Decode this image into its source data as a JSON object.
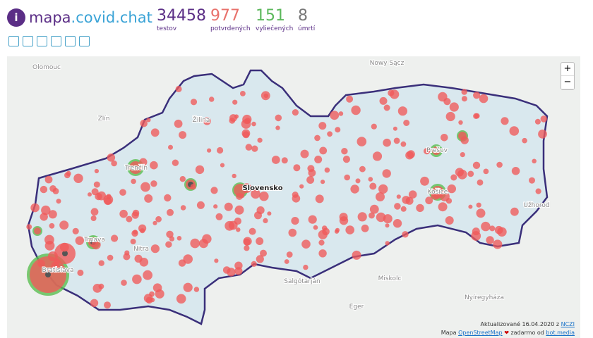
{
  "logo": {
    "prefix": "mapa",
    "suffix": ".covid.chat"
  },
  "stats": [
    {
      "value": 34458,
      "label": "testov"
    },
    {
      "value": 977,
      "label": "potvrdených"
    },
    {
      "value": 151,
      "label": "vyliečených"
    },
    {
      "value": 8,
      "label": "úmrtí"
    }
  ],
  "map": {
    "places": [
      "Olomouc",
      "Nowy Sącz",
      "Zlín",
      "Žilina",
      "Trenčín",
      "Slovensko",
      "Nitra",
      "Trnava",
      "Bratislava",
      "Prešov",
      "Košice",
      "Užhorod",
      "Salgótarján",
      "Miskolc",
      "Eger",
      "Nyíregyháza"
    ],
    "zoom_in": "+",
    "zoom_out": "−"
  },
  "footer": {
    "updated": "Aktualizované 16.04.2020 z",
    "source": "NCZI",
    "map_prefix": "Mapa",
    "map_link": "OpenStreetMap",
    "free": "zadarmo od",
    "author": "bot.media"
  }
}
